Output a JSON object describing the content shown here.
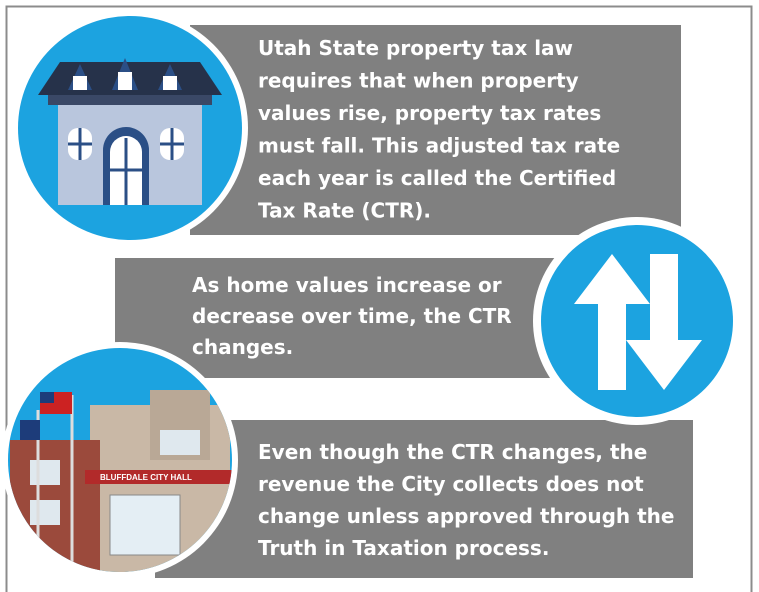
{
  "blocks": [
    {
      "lines": [
        "Utah State property tax law",
        "requires that when property",
        "values rise, property tax rates",
        "must fall. This adjusted tax rate",
        "each year is called the Certified",
        "Tax Rate (CTR)."
      ]
    },
    {
      "lines": [
        "As home values increase or",
        "decrease over time, the CTR",
        "changes."
      ]
    },
    {
      "lines": [
        "Even though the CTR changes, the",
        "revenue the City collects does not",
        "change unless approved through the",
        "Truth in Taxation process."
      ]
    }
  ],
  "building_sign": "BLUFFDALE CITY HALL"
}
